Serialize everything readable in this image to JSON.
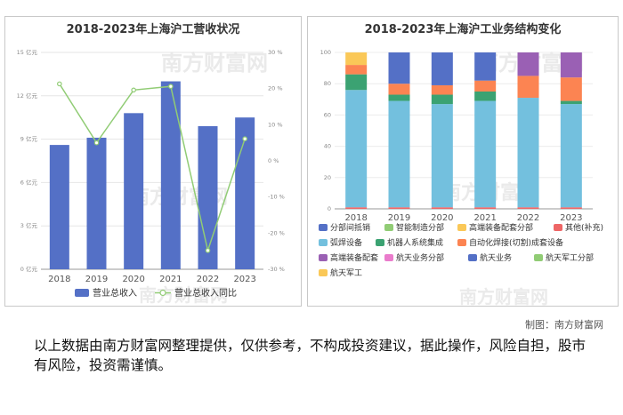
{
  "watermark": "南方财富网",
  "credit": "制图：南方财富网",
  "disclaimer": "以上数据由南方财富网整理提供，仅供参考，不构成投资建议，据此操作，风险自担，股市有风险，投资需谨慎。",
  "chart_data": [
    {
      "type": "bar",
      "title": "2018-2023年上海沪工营收状况",
      "categories": [
        "2018",
        "2019",
        "2020",
        "2021",
        "2022",
        "2023"
      ],
      "y_unit": "亿元",
      "ylim": [
        0,
        15
      ],
      "y_ticks": [
        0,
        3,
        6,
        9,
        12,
        15
      ],
      "y2_unit": "%",
      "y2lim": [
        -30,
        30
      ],
      "y2_ticks": [
        -30,
        -20,
        -10,
        0,
        10,
        20,
        30
      ],
      "series": [
        {
          "name": "营业总收入",
          "type": "bar",
          "color": "#5470c6",
          "values": [
            8.6,
            9.1,
            10.8,
            13.0,
            9.9,
            10.5
          ]
        },
        {
          "name": "营业总收入同比",
          "type": "line",
          "color": "#91cc75",
          "values": [
            21.3,
            5.0,
            19.6,
            20.6,
            -24.8,
            6.1
          ]
        }
      ],
      "legend_position": "bottom"
    },
    {
      "type": "bar",
      "stacked": true,
      "title": "2018-2023年上海沪工业务结构变化",
      "categories": [
        "2018",
        "2019",
        "2020",
        "2021",
        "2022",
        "2023"
      ],
      "ylim": [
        0,
        100
      ],
      "y_ticks": [
        0,
        20,
        40,
        60,
        80,
        100
      ],
      "series": [
        {
          "name": "分部间抵销",
          "color": "#5470c6",
          "values": [
            0,
            0,
            0,
            0,
            0,
            0
          ]
        },
        {
          "name": "智能制造分部",
          "color": "#91cc75",
          "values": [
            0,
            0,
            0,
            0,
            0,
            0
          ]
        },
        {
          "name": "高端装备配套分部",
          "color": "#fac858",
          "values": [
            0,
            0,
            0,
            0,
            0,
            0
          ]
        },
        {
          "name": "其他(补充)",
          "color": "#ee6666",
          "values": [
            1,
            1,
            1,
            1,
            1,
            1
          ]
        },
        {
          "name": "弧焊设备",
          "color": "#73c0de",
          "values": [
            75,
            68,
            66,
            68,
            70,
            66
          ]
        },
        {
          "name": "机器人系统集成",
          "color": "#3ba272",
          "values": [
            10,
            4,
            6,
            6,
            0,
            2
          ]
        },
        {
          "name": "自动化焊接(切割)成套设备",
          "color": "#fc8452",
          "values": [
            6,
            7,
            6,
            7,
            14,
            15
          ]
        },
        {
          "name": "高端装备配套",
          "color": "#9a60b4",
          "values": [
            0,
            0,
            0,
            0,
            15,
            16
          ]
        },
        {
          "name": "航天业务分部",
          "color": "#ea7ccc",
          "values": [
            0,
            0,
            0,
            0,
            0,
            0
          ]
        },
        {
          "name": "航天业务",
          "color": "#5470c6",
          "values": [
            0,
            20,
            21,
            18,
            0,
            0
          ]
        },
        {
          "name": "航天军工分部",
          "color": "#91cc75",
          "values": [
            0,
            0,
            0,
            0,
            0,
            0
          ]
        },
        {
          "name": "航天军工",
          "color": "#fac858",
          "values": [
            8,
            0,
            0,
            0,
            0,
            0
          ]
        }
      ],
      "legend_position": "bottom"
    }
  ]
}
